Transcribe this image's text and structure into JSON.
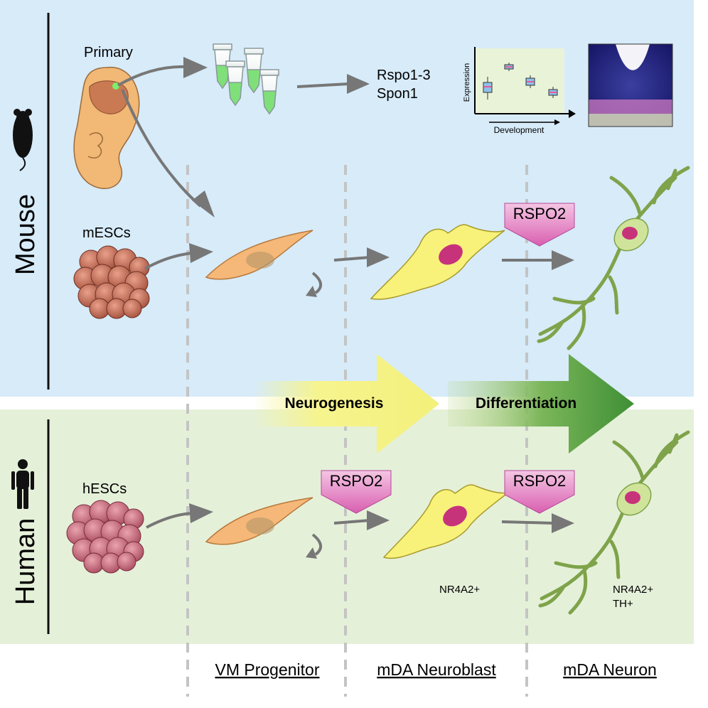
{
  "species": {
    "mouse": "Mouse",
    "human": "Human"
  },
  "labels": {
    "primary": "Primary",
    "mescs": "mESCs",
    "hescs": "hESCs",
    "genes_line1": "Rspo1-3",
    "genes_line2": "Spon1",
    "plot_ylabel": "Expression",
    "plot_xlabel": "Development",
    "rspo2": "RSPO2",
    "nr4a2": "NR4A2+",
    "nr4a2_neuron": "NR4A2+",
    "th": "TH+"
  },
  "processes": {
    "neurogenesis": "Neurogenesis",
    "differentiation": "Differentiation"
  },
  "stages": {
    "vm_progenitor": "VM Progenitor",
    "mda_neuroblast": "mDA Neuroblast",
    "mda_neuron": "mDA Neuron"
  },
  "colors": {
    "mouse_bg": "#d7ebf9",
    "human_bg": "#e5f0d9",
    "progenitor": "#f5b878",
    "neuroblast": "#f8f27a",
    "neuron": "#cfe49a",
    "nucleus": "#c7337a",
    "rspo2": "#e986c6",
    "arrow_gray": "#7a7a7a",
    "neurogenesis_arrow": "#f6f48e",
    "differentiation_arrow": "#4f9a3e"
  }
}
